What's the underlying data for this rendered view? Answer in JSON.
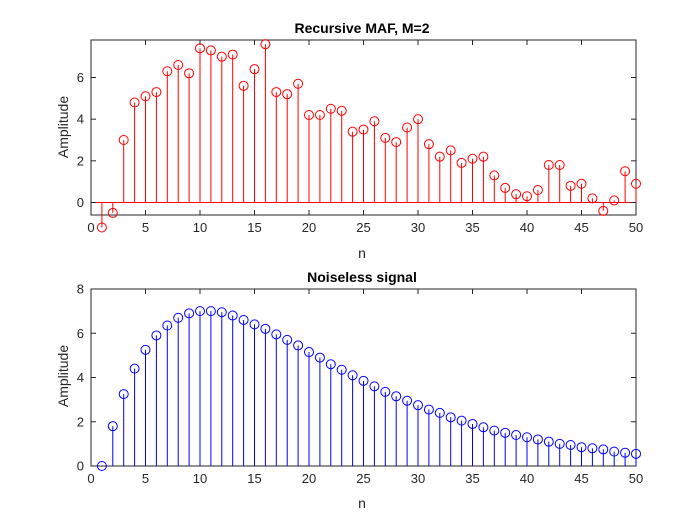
{
  "chart_data": [
    {
      "type": "stem",
      "title": "Recursive MAF, M=2",
      "xlabel": "n",
      "ylabel": "Amplitude",
      "xlim": [
        0,
        50
      ],
      "ylim": [
        -0.6,
        7.8
      ],
      "xticks": [
        0,
        5,
        10,
        15,
        20,
        25,
        30,
        35,
        40,
        45,
        50
      ],
      "yticks": [
        0,
        2,
        4,
        6
      ],
      "grid": false,
      "color": "#ff0000",
      "x": [
        1,
        2,
        3,
        4,
        5,
        6,
        7,
        8,
        9,
        10,
        11,
        12,
        13,
        14,
        15,
        16,
        17,
        18,
        19,
        20,
        21,
        22,
        23,
        24,
        25,
        26,
        27,
        28,
        29,
        30,
        31,
        32,
        33,
        34,
        35,
        36,
        37,
        38,
        39,
        40,
        41,
        42,
        43,
        44,
        45,
        46,
        47,
        48,
        49,
        50
      ],
      "values": [
        -1.2,
        -0.5,
        3.0,
        4.8,
        5.1,
        5.3,
        6.3,
        6.6,
        6.2,
        7.4,
        7.3,
        7.0,
        7.1,
        5.6,
        6.4,
        7.6,
        5.3,
        5.2,
        5.7,
        4.2,
        4.2,
        4.5,
        4.4,
        3.4,
        3.5,
        3.9,
        3.1,
        2.9,
        3.6,
        4.0,
        2.8,
        2.2,
        2.5,
        1.9,
        2.1,
        2.2,
        1.3,
        0.7,
        0.4,
        0.3,
        0.6,
        1.8,
        1.8,
        0.8,
        0.9,
        0.2,
        -0.4,
        0.1,
        1.5,
        0.9
      ]
    },
    {
      "type": "stem",
      "title": "Noiseless signal",
      "xlabel": "n",
      "ylabel": "Amplitude",
      "xlim": [
        0,
        50
      ],
      "ylim": [
        0,
        8
      ],
      "xticks": [
        0,
        5,
        10,
        15,
        20,
        25,
        30,
        35,
        40,
        45,
        50
      ],
      "yticks": [
        0,
        2,
        4,
        6,
        8
      ],
      "grid": false,
      "color": "#0000ff",
      "x": [
        1,
        2,
        3,
        4,
        5,
        6,
        7,
        8,
        9,
        10,
        11,
        12,
        13,
        14,
        15,
        16,
        17,
        18,
        19,
        20,
        21,
        22,
        23,
        24,
        25,
        26,
        27,
        28,
        29,
        30,
        31,
        32,
        33,
        34,
        35,
        36,
        37,
        38,
        39,
        40,
        41,
        42,
        43,
        44,
        45,
        46,
        47,
        48,
        49,
        50
      ],
      "values": [
        0.0,
        1.8,
        3.25,
        4.4,
        5.25,
        5.9,
        6.35,
        6.7,
        6.9,
        7.0,
        7.0,
        6.95,
        6.8,
        6.6,
        6.4,
        6.2,
        5.95,
        5.7,
        5.45,
        5.15,
        4.9,
        4.6,
        4.35,
        4.1,
        3.85,
        3.6,
        3.35,
        3.15,
        2.95,
        2.75,
        2.55,
        2.4,
        2.2,
        2.05,
        1.9,
        1.75,
        1.6,
        1.5,
        1.4,
        1.3,
        1.2,
        1.1,
        1.0,
        0.95,
        0.85,
        0.8,
        0.75,
        0.65,
        0.6,
        0.55
      ]
    }
  ]
}
